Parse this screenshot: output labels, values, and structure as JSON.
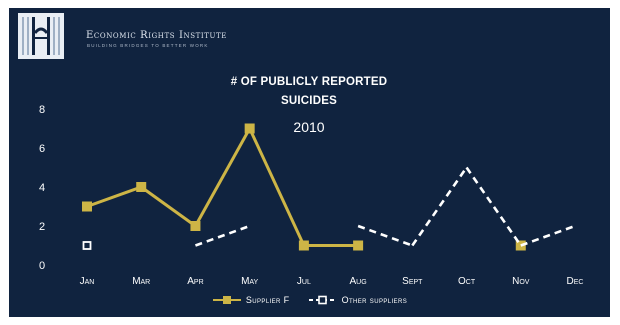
{
  "header": {
    "org_name": "Economic Rights Institute",
    "tagline": "Building bridges to better work"
  },
  "colors": {
    "background": "#10233f",
    "supplier_f": "#cdb546",
    "other_suppliers": "#ffffff",
    "text": "#ffffff"
  },
  "chart_data": {
    "type": "line",
    "title_line1": "# OF PUBLICLY REPORTED",
    "title_line2": "SUICIDES",
    "subtitle": "2010",
    "categories": [
      "Jan",
      "Mar",
      "Apr",
      "May",
      "Jul",
      "Aug",
      "Sept",
      "Oct",
      "Nov",
      "Dec"
    ],
    "y_ticks": [
      "0",
      "2",
      "4",
      "6",
      "8"
    ],
    "ylim": [
      0,
      8
    ],
    "grid": false,
    "legend_position": "bottom-center",
    "series": [
      {
        "name": "Supplier F",
        "style": "solid",
        "marker": "filled-square",
        "values": [
          3,
          4,
          2,
          7,
          1,
          1,
          null,
          null,
          1,
          null
        ],
        "segments": [
          [
            0,
            5
          ]
        ]
      },
      {
        "name": "Other suppliers",
        "style": "dashed",
        "marker": "hollow-square",
        "values": [
          1,
          null,
          1,
          2,
          null,
          2,
          1,
          5,
          1,
          2
        ],
        "segments": [
          [
            2,
            3
          ],
          [
            5,
            9
          ]
        ]
      }
    ]
  }
}
